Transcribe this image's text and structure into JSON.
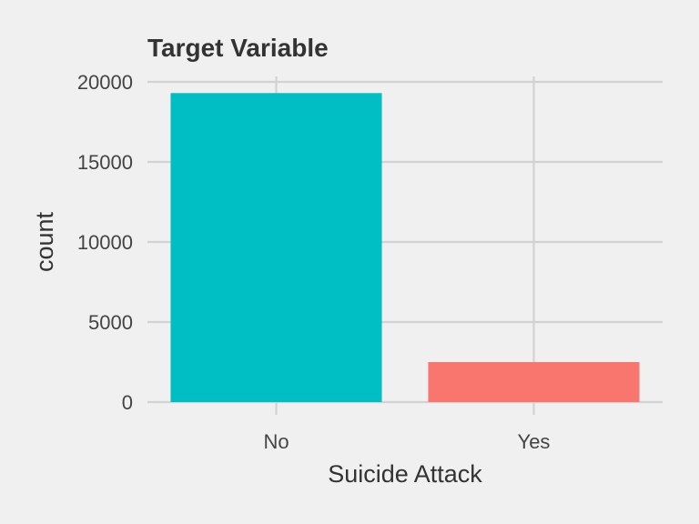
{
  "chart_data": {
    "type": "bar",
    "title": "Target Variable",
    "xlabel": "Suicide Attack",
    "ylabel": "count",
    "categories": [
      "No",
      "Yes"
    ],
    "values": [
      19300,
      2500
    ],
    "colors": [
      "#00BFC4",
      "#F8766D"
    ],
    "ylim": [
      0,
      20000
    ],
    "yticks": [
      "0",
      "5000",
      "10000",
      "15000",
      "20000"
    ],
    "grid": true,
    "legend": "none"
  }
}
